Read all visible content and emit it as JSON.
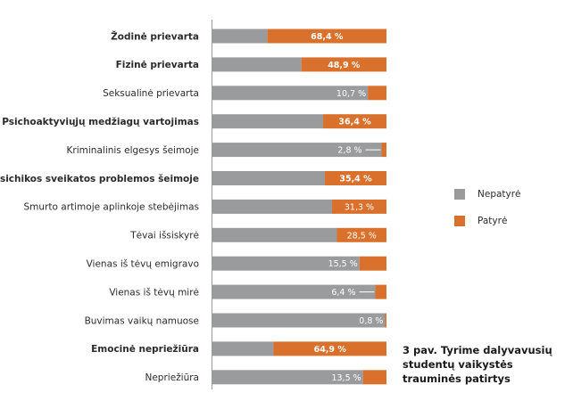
{
  "chart_data": {
    "type": "bar",
    "orientation": "horizontal",
    "stacked": true,
    "xlim": [
      0,
      100
    ],
    "categories": [
      "Žodinė prievarta",
      "Fizinė prievarta",
      "Seksualinė prievarta",
      "Psichoaktyviųjų medžiagų vartojimas",
      "Kriminalinis elgesys šeimoje",
      "Psichikos sveikatos problemos šeimoje",
      "Smurto artimoje aplinkoje stebėjimas",
      "Tėvai išsiskyrė",
      "Vienas iš tėvų emigravo",
      "Vienas iš tėvų mirė",
      "Buvimas vaikų namuose",
      "Emocinė nepriežiūra",
      "Nepriežiūra"
    ],
    "bold_categories": [
      "Žodinė prievarta",
      "Fizinė prievarta",
      "Psichoaktyviųjų medžiagų vartojimas",
      "Psichikos sveikatos problemos šeimoje",
      "Emocinė nepriežiūra"
    ],
    "value_labels": [
      "68,4 %",
      "48,9 %",
      "10,7 %",
      "36,4 %",
      "2,8 %",
      "35,4 %",
      "31,3 %",
      "28,5 %",
      "15,5 %",
      "6,4 %",
      "0,8 %",
      "64,9 %",
      "13,5 %"
    ],
    "series": [
      {
        "name": "Nepatyrė",
        "color": "#9a9b9d",
        "values": [
          31.6,
          51.1,
          89.3,
          63.6,
          97.2,
          64.6,
          68.7,
          71.5,
          84.5,
          93.6,
          99.2,
          35.1,
          86.5
        ]
      },
      {
        "name": "Patyrė",
        "color": "#d9702b",
        "values": [
          68.4,
          48.9,
          10.7,
          36.4,
          2.8,
          35.4,
          31.3,
          28.5,
          15.5,
          6.4,
          0.8,
          64.9,
          13.5
        ]
      }
    ]
  },
  "legend": {
    "items": [
      {
        "label": "Nepatyrė",
        "color": "#9a9b9d"
      },
      {
        "label": "Patyrė",
        "color": "#d9702b"
      }
    ]
  },
  "caption": "3 pav. Tyrime dalyvavusių studentų vaikystės trauminės patirtys"
}
